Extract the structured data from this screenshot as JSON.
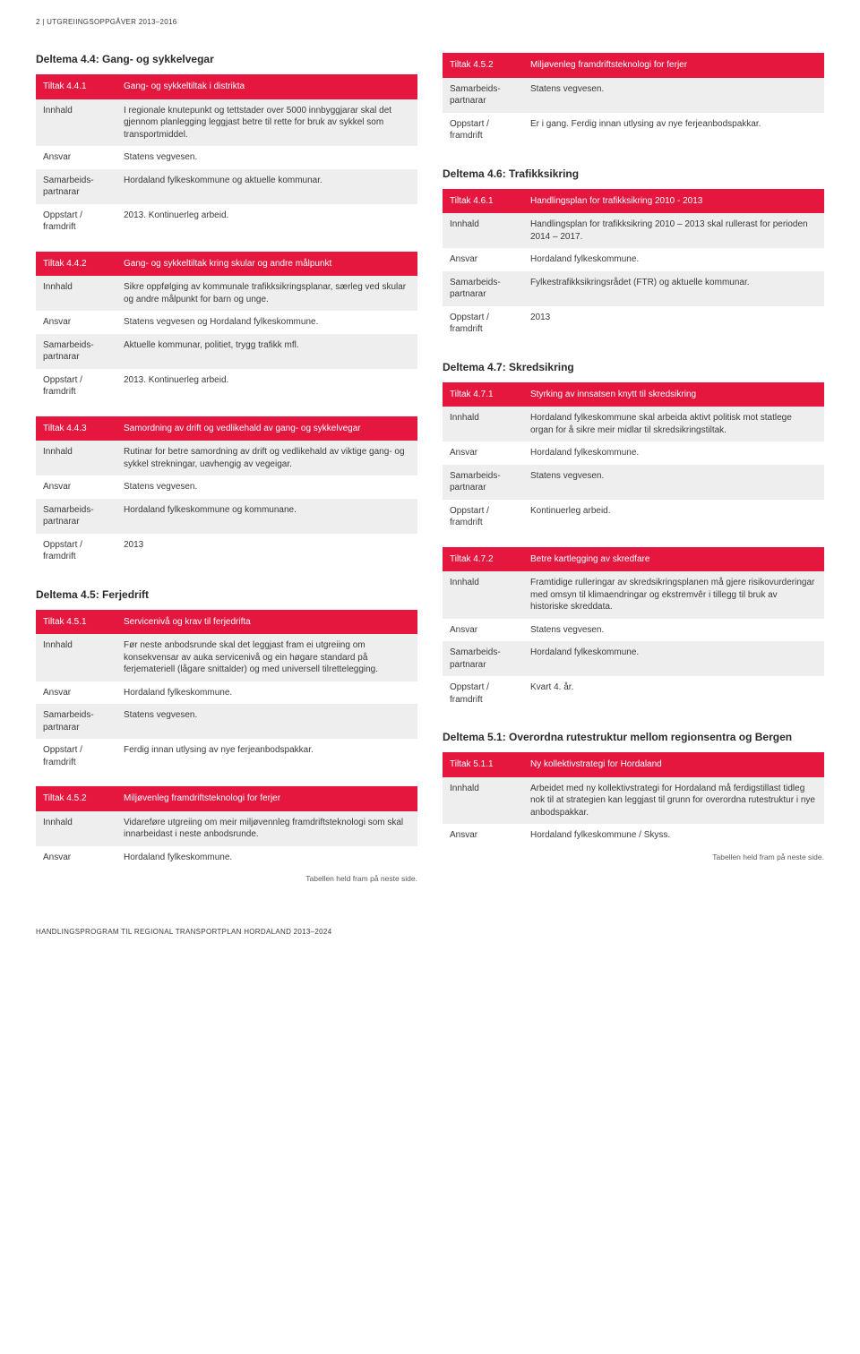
{
  "page_header": "2 | UTGREIINGSOPPGÅVER 2013–2016",
  "page_footer": "HANDLINGSPROGRAM TIL REGIONAL TRANSPORTPLAN HORDALAND 2013–2024",
  "colors": {
    "header_bg": "#e5173f",
    "header_text": "#ffffff",
    "row_alt_bg": "#eeeeee",
    "text": "#3a3a3a",
    "page_bg": "#ffffff"
  },
  "labels": {
    "innhald": "Innhald",
    "ansvar": "Ansvar",
    "samarbeid": "Samarbeids-partnarar",
    "oppstart": "Oppstart / framdrift"
  },
  "left": {
    "d44": {
      "title": "Deltema 4.4: Gang- og sykkelvegar",
      "t1": {
        "tiltak": "Tiltak 4.4.1",
        "head": "Gang- og sykkeltiltak i distrikta",
        "innhald": "I regionale knutepunkt og tettstader over 5000 innbyggjarar skal det gjennom planlegging leggjast betre til rette for bruk av sykkel som transportmiddel.",
        "ansvar": "Statens vegvesen.",
        "samarbeid": "Hordaland fylkeskommune og aktuelle kommunar.",
        "oppstart": "2013. Kontinuerleg arbeid."
      },
      "t2": {
        "tiltak": "Tiltak 4.4.2",
        "head": "Gang- og sykkeltiltak kring skular og andre målpunkt",
        "innhald": "Sikre oppfølging av kommunale trafikksikringsplanar, særleg ved skular og andre målpunkt for barn og unge.",
        "ansvar": "Statens vegvesen og Hordaland fylkeskommune.",
        "samarbeid": "Aktuelle kommunar, politiet, trygg trafikk mfl.",
        "oppstart": "2013. Kontinuerleg arbeid."
      },
      "t3": {
        "tiltak": "Tiltak 4.4.3",
        "head": "Samordning av drift og vedlikehald av gang- og sykkelvegar",
        "innhald": "Rutinar for betre samordning av drift og vedlikehald av viktige gang- og sykkel strekningar, uavhengig av vegeigar.",
        "ansvar": "Statens vegvesen.",
        "samarbeid": "Hordaland fylkeskommune og kommunane.",
        "oppstart": "2013"
      }
    },
    "d45": {
      "title": "Deltema 4.5: Ferjedrift",
      "t1": {
        "tiltak": "Tiltak 4.5.1",
        "head": "Servicenivå og krav til ferjedrifta",
        "innhald": "Før neste anbodsrunde skal det leggjast fram ei utgreiing om konsekvensar av auka servicenivå og ein høgare standard på ferjemateriell (lågare snittalder) og med universell tilrettelegging.",
        "ansvar": "Hordaland fylkeskommune.",
        "samarbeid": "Statens vegvesen.",
        "oppstart": "Ferdig innan utlysing av nye ferjeanbodspakkar."
      },
      "t2": {
        "tiltak": "Tiltak 4.5.2",
        "head": "Miljøvenleg framdriftsteknologi for ferjer",
        "innhald": "Vidareføre utgreiing om meir miljøvennleg framdriftsteknologi som skal innarbeidast i neste anbodsrunde.",
        "ansvar": "Hordaland fylkeskommune.",
        "footnote": "Tabellen held fram på neste side."
      }
    }
  },
  "right": {
    "cont452": {
      "tiltak": "Tiltak 4.5.2",
      "head": "Miljøvenleg framdriftsteknologi for ferjer",
      "samarbeid": "Statens vegvesen.",
      "oppstart": "Er i gang. Ferdig innan utlysing av nye ferjeanbodspakkar."
    },
    "d46": {
      "title": "Deltema 4.6: Trafikksikring",
      "t1": {
        "tiltak": "Tiltak 4.6.1",
        "head": "Handlingsplan for trafikksikring 2010 - 2013",
        "innhald": "Handlingsplan for trafikksikring 2010 – 2013 skal rullerast for perioden 2014 – 2017.",
        "ansvar": "Hordaland fylkeskommune.",
        "samarbeid": "Fylkestrafikksikringsrådet (FTR) og aktuelle kommunar.",
        "oppstart": "2013"
      }
    },
    "d47": {
      "title": "Deltema 4.7: Skredsikring",
      "t1": {
        "tiltak": "Tiltak 4.7.1",
        "head": "Styrking av innsatsen knytt til skredsikring",
        "innhald": "Hordaland fylkeskommune skal arbeida aktivt politisk mot statlege organ for å sikre meir midlar til skredsikringstiltak.",
        "ansvar": "Hordaland fylkeskommune.",
        "samarbeid": "Statens vegvesen.",
        "oppstart": "Kontinuerleg arbeid."
      },
      "t2": {
        "tiltak": "Tiltak 4.7.2",
        "head": "Betre kartlegging av skredfare",
        "innhald": "Framtidige rulleringar av skredsikringsplanen må gjere risikovurderingar med omsyn til klimaendringar og ekstremvêr i tillegg til bruk av historiske skreddata.",
        "ansvar": "Statens vegvesen.",
        "samarbeid": "Hordaland fylkeskommune.",
        "oppstart": "Kvart 4. år."
      }
    },
    "d51": {
      "title": "Deltema 5.1: Overordna rutestruktur mellom regionsentra og Bergen",
      "t1": {
        "tiltak": "Tiltak 5.1.1",
        "head": "Ny kollektivstrategi for Hordaland",
        "innhald": "Arbeidet med ny kollektivstrategi for Hordaland må ferdigstillast tidleg nok til at strategien kan leggjast til grunn for overordna rutestruktur i nye anbodspakkar.",
        "ansvar": "Hordaland fylkeskommune / Skyss.",
        "footnote": "Tabellen held fram på neste side."
      }
    }
  }
}
